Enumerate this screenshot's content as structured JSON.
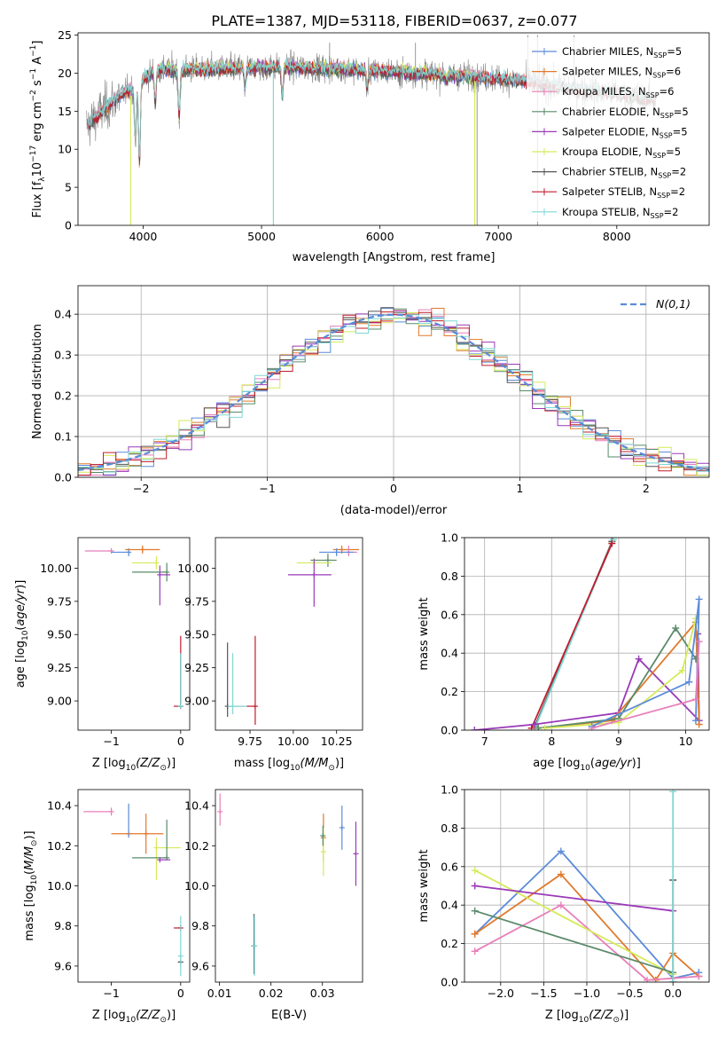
{
  "title": "PLATE=1387, MJD=53118, FIBERID=0637, z=0.077",
  "colors": {
    "chabrier_miles": "#5b8bd8",
    "salpeter_miles": "#e07a2d",
    "kroupa_miles": "#e87fba",
    "chabrier_elodie": "#5a8a6a",
    "salpeter_elodie": "#9a3ab8",
    "kroupa_elodie": "#d6ea5a",
    "chabrier_stelib": "#555555",
    "salpeter_stelib": "#c01d2d",
    "kroupa_stelib": "#7fd8d4",
    "data": "#808080",
    "normal": "#5b8bd8"
  },
  "legend": [
    {
      "key": "chabrier_miles",
      "label": "Chabrier MILES, N",
      "sub": "SSP",
      "suffix": "=5"
    },
    {
      "key": "salpeter_miles",
      "label": "Salpeter MILES, N",
      "sub": "SSP",
      "suffix": "=6"
    },
    {
      "key": "kroupa_miles",
      "label": "Kroupa MILES, N",
      "sub": "SSP",
      "suffix": "=6"
    },
    {
      "key": "chabrier_elodie",
      "label": "Chabrier ELODIE, N",
      "sub": "SSP",
      "suffix": "=5"
    },
    {
      "key": "salpeter_elodie",
      "label": "Salpeter ELODIE, N",
      "sub": "SSP",
      "suffix": "=5"
    },
    {
      "key": "kroupa_elodie",
      "label": "Kroupa ELODIE, N",
      "sub": "SSP",
      "suffix": "=5"
    },
    {
      "key": "chabrier_stelib",
      "label": "Chabrier STELIB, N",
      "sub": "SSP",
      "suffix": "=2"
    },
    {
      "key": "salpeter_stelib",
      "label": "Salpeter STELIB, N",
      "sub": "SSP",
      "suffix": "=2"
    },
    {
      "key": "kroupa_stelib",
      "label": "Kroupa STELIB, N",
      "sub": "SSP",
      "suffix": "=2"
    }
  ],
  "chart_data": [
    {
      "id": "spectrum",
      "type": "line",
      "xlabel": "wavelength [Angstrom, rest frame]",
      "ylabel": "Flux [f",
      "ylabel_full": "Flux [f_λ 10^-17 erg cm^-2 s^-1 A^-1]",
      "xlim": [
        3450,
        8780
      ],
      "ylim": [
        0,
        25.3
      ],
      "xticks": [
        4000,
        5000,
        6000,
        7000,
        8000
      ],
      "yticks": [
        0,
        5,
        10,
        15,
        20,
        25
      ],
      "grid": false,
      "legend_position": "upper right",
      "continuum": {
        "x": [
          3520,
          3650,
          3800,
          3950,
          4100,
          4400,
          4800,
          5200,
          5600,
          6000,
          6400,
          6800,
          7200,
          7600,
          8000,
          8300
        ],
        "y": [
          13,
          15,
          17,
          18.5,
          20.5,
          20.5,
          20.7,
          20.8,
          20.6,
          20.3,
          19.9,
          19.6,
          19,
          18,
          17.3,
          16.5
        ]
      },
      "absorption_lines": [
        {
          "x": 3934,
          "y": 11
        },
        {
          "x": 3969,
          "y": 8
        },
        {
          "x": 4102,
          "y": 16
        },
        {
          "x": 4304,
          "y": 14
        },
        {
          "x": 4861,
          "y": 18
        },
        {
          "x": 5175,
          "y": 17
        },
        {
          "x": 5892,
          "y": 18
        },
        {
          "x": 6563,
          "y": 19
        }
      ],
      "spikes": [
        {
          "x": 3895,
          "y": 0
        },
        {
          "x": 5100,
          "y": 0
        },
        {
          "x": 6820,
          "y": 0
        },
        {
          "x": 5575,
          "y": 24
        },
        {
          "x": 6300,
          "y": 24
        },
        {
          "x": 7250,
          "y": 25
        },
        {
          "x": 7330,
          "y": 25
        },
        {
          "x": 7330,
          "y": 0
        },
        {
          "x": 7640,
          "y": 25
        }
      ]
    },
    {
      "id": "residuals",
      "type": "histogram",
      "xlabel": "(data-model)/error",
      "ylabel": "Normed distribution",
      "xlim": [
        -2.5,
        2.5
      ],
      "ylim": [
        0,
        0.47
      ],
      "xticks": [
        -2,
        -1,
        0,
        1,
        2
      ],
      "yticks": [
        0,
        0.1,
        0.2,
        0.3,
        0.4
      ],
      "grid": true,
      "legend_position": "upper right",
      "legend_label": "N(0,1)",
      "bin_width": 0.1,
      "series_keys": [
        "chabrier_miles",
        "salpeter_miles",
        "kroupa_miles",
        "chabrier_elodie",
        "salpeter_elodie",
        "kroupa_elodie",
        "chabrier_stelib",
        "salpeter_stelib",
        "kroupa_stelib"
      ]
    },
    {
      "id": "age_vs_z",
      "type": "scatter",
      "xlabel": "Z [log10(Z/Z⊙)]",
      "ylabel": "age [log10(age/yr)]",
      "xlim": [
        -1.48,
        0.13
      ],
      "ylim": [
        8.78,
        10.23
      ],
      "xticks": [
        -1,
        0
      ],
      "yticks": [
        9.0,
        9.25,
        9.5,
        9.75,
        10.0
      ],
      "points": [
        {
          "key": "kroupa_miles",
          "x": -1.0,
          "y": 10.13,
          "xerr": [
            0.38,
            0.0
          ],
          "yerr": [
            0.02,
            0.02
          ]
        },
        {
          "key": "chabrier_miles",
          "x": -0.75,
          "y": 10.12,
          "xerr": [
            0.25,
            0.0
          ],
          "yerr": [
            0.03,
            0.03
          ]
        },
        {
          "key": "salpeter_miles",
          "x": -0.55,
          "y": 10.14,
          "xerr": [
            0.25,
            0.25
          ],
          "yerr": [
            0.03,
            0.03
          ]
        },
        {
          "key": "kroupa_elodie",
          "x": -0.35,
          "y": 10.04,
          "xerr": [
            0.35,
            0.0
          ],
          "yerr": [
            0.05,
            0.05
          ]
        },
        {
          "key": "chabrier_elodie",
          "x": -0.2,
          "y": 9.97,
          "xerr": [
            0.5,
            0.0
          ],
          "yerr": [
            0.07,
            0.07
          ]
        },
        {
          "key": "salpeter_elodie",
          "x": -0.3,
          "y": 9.95,
          "xerr": [
            0.0,
            0.15
          ],
          "yerr": [
            0.23,
            0.07
          ]
        },
        {
          "key": "salpeter_stelib",
          "x": 0.0,
          "y": 8.96,
          "xerr": [
            0.1,
            0.0
          ],
          "yerr": [
            0.0,
            0.53
          ]
        },
        {
          "key": "chabrier_stelib",
          "x": 0.0,
          "y": 8.96,
          "xerr": [
            0.02,
            0.0
          ],
          "yerr": [
            0.0,
            0.4
          ]
        },
        {
          "key": "kroupa_stelib",
          "x": 0.0,
          "y": 8.96,
          "xerr": [
            0.0,
            0.0
          ],
          "yerr": [
            0.0,
            0.4
          ]
        }
      ]
    },
    {
      "id": "age_vs_mass",
      "type": "scatter",
      "xlabel": "mass [log10(M/M⊙)]",
      "ylabel": "",
      "xlim": [
        9.55,
        10.4
      ],
      "ylim": [
        8.78,
        10.23
      ],
      "xticks": [
        9.75,
        10.0,
        10.25
      ],
      "yticks": [
        9.0,
        9.25,
        9.5,
        9.75,
        10.0
      ],
      "points": [
        {
          "key": "salpeter_miles",
          "x": 10.28,
          "y": 10.14,
          "xerr": [
            0.05,
            0.1
          ],
          "yerr": [
            0.03,
            0.03
          ]
        },
        {
          "key": "kroupa_miles",
          "x": 10.32,
          "y": 10.12,
          "xerr": [
            0.05,
            0.05
          ],
          "yerr": [
            0.03,
            0.05
          ]
        },
        {
          "key": "chabrier_miles",
          "x": 10.25,
          "y": 10.12,
          "xerr": [
            0.1,
            0.1
          ],
          "yerr": [
            0.03,
            0.03
          ]
        },
        {
          "key": "chabrier_elodie",
          "x": 10.2,
          "y": 10.06,
          "xerr": [
            0.1,
            0.05
          ],
          "yerr": [
            0.05,
            0.05
          ]
        },
        {
          "key": "kroupa_elodie",
          "x": 10.12,
          "y": 10.04,
          "xerr": [
            0.1,
            0.1
          ],
          "yerr": [
            0.04,
            0.04
          ]
        },
        {
          "key": "salpeter_elodie",
          "x": 10.12,
          "y": 9.95,
          "xerr": [
            0.15,
            0.1
          ],
          "yerr": [
            0.24,
            0.12
          ]
        },
        {
          "key": "salpeter_stelib",
          "x": 9.78,
          "y": 8.96,
          "xerr": [
            0.05,
            0.0
          ],
          "yerr": [
            0.14,
            0.53
          ]
        },
        {
          "key": "chabrier_stelib",
          "x": 9.62,
          "y": 8.96,
          "xerr": [
            0.0,
            0.1
          ],
          "yerr": [
            0.08,
            0.48
          ]
        },
        {
          "key": "kroupa_stelib",
          "x": 9.65,
          "y": 8.96,
          "xerr": [
            0.03,
            0.08
          ],
          "yerr": [
            0.06,
            0.4
          ]
        }
      ]
    },
    {
      "id": "mass_weight_vs_age",
      "type": "line",
      "xlabel": "age [log10(age/yr)]",
      "ylabel": "mass weight",
      "xlim": [
        6.7,
        10.35
      ],
      "ylim": [
        0,
        1.0
      ],
      "xticks": [
        7,
        8,
        9,
        10
      ],
      "yticks": [
        0.0,
        0.2,
        0.4,
        0.6,
        0.8,
        1.0
      ],
      "grid": true,
      "series": [
        {
          "key": "chabrier_stelib",
          "x": [
            7.75,
            8.9
          ],
          "y": [
            0.02,
            0.98
          ]
        },
        {
          "key": "kroupa_stelib",
          "x": [
            7.75,
            8.92
          ],
          "y": [
            0.01,
            0.99
          ]
        },
        {
          "key": "salpeter_stelib",
          "x": [
            7.7,
            8.9
          ],
          "y": [
            0.01,
            0.97
          ]
        },
        {
          "key": "salpeter_elodie",
          "x": [
            6.85,
            7.75,
            9.0,
            9.3,
            10.2,
            10.18
          ],
          "y": [
            0.0,
            0.03,
            0.09,
            0.37,
            0.05,
            0.5
          ]
        },
        {
          "key": "salpeter_miles",
          "x": [
            7.8,
            8.9,
            10.15,
            10.2
          ],
          "y": [
            0.01,
            0.05,
            0.56,
            0.03
          ]
        },
        {
          "key": "chabrier_elodie",
          "x": [
            7.8,
            9.0,
            9.85,
            10.15
          ],
          "y": [
            0.01,
            0.06,
            0.53,
            0.37
          ]
        },
        {
          "key": "kroupa_elodie",
          "x": [
            7.9,
            9.0,
            9.95,
            10.15
          ],
          "y": [
            0.01,
            0.04,
            0.31,
            0.58
          ]
        },
        {
          "key": "chabrier_miles",
          "x": [
            8.6,
            10.05,
            10.2,
            10.15
          ],
          "y": [
            0.02,
            0.25,
            0.68,
            0.05
          ]
        },
        {
          "key": "kroupa_miles",
          "x": [
            8.6,
            10.15,
            10.2
          ],
          "y": [
            0.01,
            0.16,
            0.46
          ]
        }
      ]
    },
    {
      "id": "mass_vs_z",
      "type": "scatter",
      "xlabel": "Z [log10(Z/Z⊙)]",
      "ylabel": "mass [log10(M/M⊙)]",
      "xlim": [
        -1.48,
        0.13
      ],
      "ylim": [
        9.52,
        10.48
      ],
      "xticks": [
        -1,
        0
      ],
      "yticks": [
        9.6,
        9.8,
        10.0,
        10.2,
        10.4
      ],
      "points": [
        {
          "key": "kroupa_miles",
          "x": -1.0,
          "y": 10.37,
          "xerr": [
            0.4,
            0.0
          ],
          "yerr": [
            0.02,
            0.02
          ]
        },
        {
          "key": "chabrier_miles",
          "x": -0.75,
          "y": 10.26,
          "xerr": [
            0.0,
            0.0
          ],
          "yerr": [
            0.02,
            0.15
          ]
        },
        {
          "key": "salpeter_miles",
          "x": -0.5,
          "y": 10.26,
          "xerr": [
            0.5,
            0.25
          ],
          "yerr": [
            0.1,
            0.1
          ]
        },
        {
          "key": "kroupa_elodie",
          "x": -0.35,
          "y": 10.19,
          "xerr": [
            0.0,
            0.35
          ],
          "yerr": [
            0.16,
            0.05
          ]
        },
        {
          "key": "chabrier_elodie",
          "x": -0.2,
          "y": 10.14,
          "xerr": [
            0.5,
            0.0
          ],
          "yerr": [
            0.0,
            0.19
          ]
        },
        {
          "key": "salpeter_elodie",
          "x": -0.3,
          "y": 10.13,
          "xerr": [
            0.0,
            0.15
          ],
          "yerr": [
            0.0,
            0.0
          ]
        },
        {
          "key": "salpeter_stelib",
          "x": 0.0,
          "y": 9.79,
          "xerr": [
            0.1,
            0.0
          ],
          "yerr": [
            0.0,
            0.0
          ]
        },
        {
          "key": "chabrier_stelib",
          "x": 0.0,
          "y": 9.62,
          "xerr": [
            0.04,
            0.0
          ],
          "yerr": [
            0.0,
            0.0
          ]
        },
        {
          "key": "kroupa_stelib",
          "x": 0.0,
          "y": 9.65,
          "xerr": [
            0.0,
            0.0
          ],
          "yerr": [
            0.1,
            0.2
          ]
        }
      ]
    },
    {
      "id": "mass_vs_ebv",
      "type": "scatter",
      "xlabel": "E(B-V)",
      "ylabel": "",
      "xlim": [
        0.0092,
        0.0378
      ],
      "ylim": [
        9.52,
        10.48
      ],
      "xticks": [
        0.01,
        0.02,
        0.03
      ],
      "yticks": [
        9.6,
        9.8,
        10.0,
        10.2,
        10.4
      ],
      "points": [
        {
          "key": "kroupa_miles",
          "x": 0.0101,
          "y": 10.37,
          "xerr": [
            0,
            0
          ],
          "yerr": [
            0.07,
            0.09
          ]
        },
        {
          "key": "chabrier_stelib",
          "x": 0.0167,
          "y": 9.7,
          "xerr": [
            0,
            0
          ],
          "yerr": [
            0.14,
            0.16
          ]
        },
        {
          "key": "kroupa_stelib",
          "x": 0.0168,
          "y": 9.7,
          "xerr": [
            0,
            0
          ],
          "yerr": [
            0.15,
            0.15
          ]
        },
        {
          "key": "salpeter_miles",
          "x": 0.0302,
          "y": 10.24,
          "xerr": [
            0,
            0
          ],
          "yerr": [
            0.12,
            0.12
          ]
        },
        {
          "key": "kroupa_elodie",
          "x": 0.0302,
          "y": 10.17,
          "xerr": [
            0,
            0
          ],
          "yerr": [
            0.12,
            0.12
          ]
        },
        {
          "key": "chabrier_elodie",
          "x": 0.0301,
          "y": 10.25,
          "xerr": [
            0,
            0
          ],
          "yerr": [
            0.05,
            0.05
          ]
        },
        {
          "key": "chabrier_miles",
          "x": 0.0338,
          "y": 10.29,
          "xerr": [
            0,
            0
          ],
          "yerr": [
            0.11,
            0.11
          ]
        },
        {
          "key": "salpeter_elodie",
          "x": 0.0365,
          "y": 10.16,
          "xerr": [
            0,
            0
          ],
          "yerr": [
            0.16,
            0.16
          ]
        }
      ]
    },
    {
      "id": "mass_weight_vs_z",
      "type": "line",
      "xlabel": "Z [log10(Z/Z⊙)]",
      "ylabel": "mass weight",
      "xlim": [
        -2.42,
        0.42
      ],
      "ylim": [
        0,
        1.0
      ],
      "xticks": [
        -2.0,
        -1.5,
        -1.0,
        -0.5,
        0.0
      ],
      "yticks": [
        0.0,
        0.2,
        0.4,
        0.6,
        0.8,
        1.0
      ],
      "grid": true,
      "series": [
        {
          "key": "chabrier_miles",
          "x": [
            -2.3,
            -1.3,
            0.0,
            0.3
          ],
          "y": [
            0.25,
            0.68,
            0.02,
            0.05
          ]
        },
        {
          "key": "salpeter_miles",
          "x": [
            -2.3,
            -1.3,
            -0.2,
            0.0,
            0.3
          ],
          "y": [
            0.25,
            0.56,
            0.01,
            0.15,
            0.03
          ]
        },
        {
          "key": "kroupa_miles",
          "x": [
            -2.3,
            -1.3,
            -0.3,
            0.0,
            0.3
          ],
          "y": [
            0.16,
            0.4,
            0.01,
            0.02,
            0.03
          ]
        },
        {
          "key": "kroupa_elodie",
          "x": [
            -2.3,
            0.0
          ],
          "y": [
            0.58,
            0.04
          ]
        },
        {
          "key": "salpeter_elodie",
          "x": [
            -2.3,
            0.0
          ],
          "y": [
            0.5,
            0.37
          ]
        },
        {
          "key": "chabrier_elodie",
          "x": [
            -2.3,
            0.0
          ],
          "y": [
            0.37,
            0.05
          ]
        },
        {
          "key": "chabrier_stelib",
          "x": [
            0.0,
            0.0
          ],
          "y": [
            0.0,
            0.53
          ]
        },
        {
          "key": "kroupa_stelib",
          "x": [
            0.0,
            0.0
          ],
          "y": [
            0.0,
            0.99
          ]
        }
      ]
    }
  ]
}
